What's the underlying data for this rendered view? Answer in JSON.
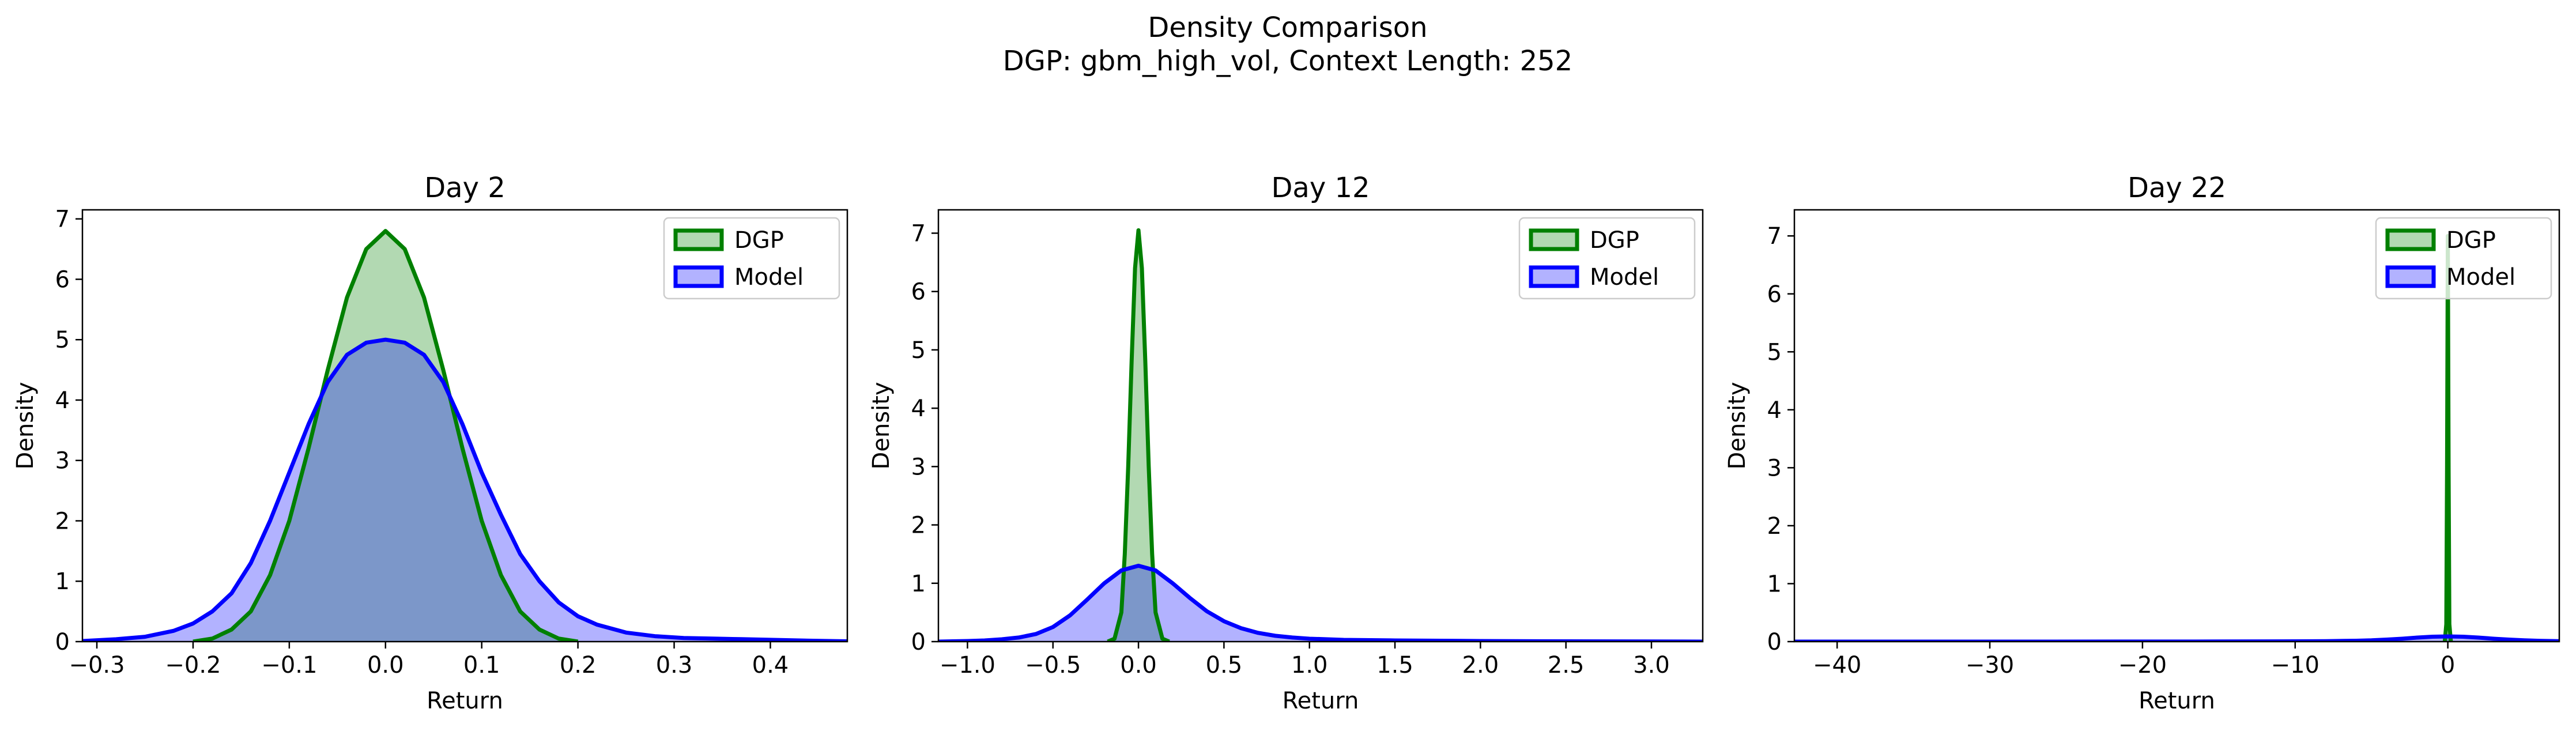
{
  "figure": {
    "title_line1": "Density Comparison",
    "title_line2": "DGP: gbm_high_vol, Context Length: 252"
  },
  "colors": {
    "dgp_line": "#008000",
    "dgp_fill": "#008000",
    "model_line": "#0000ff",
    "model_fill": "#0000ff"
  },
  "chart_data": [
    {
      "type": "area",
      "title": "Day 2",
      "xlabel": "Return",
      "ylabel": "Density",
      "xlim": [
        -0.315,
        0.48
      ],
      "ylim": [
        0,
        7.15
      ],
      "xticks": [
        -0.3,
        -0.2,
        -0.1,
        0.0,
        0.1,
        0.2,
        0.3,
        0.4
      ],
      "xtick_labels": [
        "−0.3",
        "−0.2",
        "−0.1",
        "0.0",
        "0.1",
        "0.2",
        "0.3",
        "0.4"
      ],
      "yticks": [
        0,
        1,
        2,
        3,
        4,
        5,
        6,
        7
      ],
      "ytick_labels": [
        "0",
        "1",
        "2",
        "3",
        "4",
        "5",
        "6",
        "7"
      ],
      "legend": {
        "position": "upper right",
        "entries": [
          "DGP",
          "Model"
        ]
      },
      "series": [
        {
          "name": "DGP",
          "x": [
            -0.2,
            -0.18,
            -0.16,
            -0.14,
            -0.12,
            -0.1,
            -0.08,
            -0.06,
            -0.04,
            -0.02,
            0.0,
            0.02,
            0.04,
            0.06,
            0.08,
            0.1,
            0.12,
            0.14,
            0.16,
            0.18,
            0.2
          ],
          "y": [
            0.0,
            0.05,
            0.2,
            0.5,
            1.1,
            2.0,
            3.2,
            4.5,
            5.7,
            6.5,
            6.8,
            6.5,
            5.7,
            4.5,
            3.2,
            2.0,
            1.1,
            0.5,
            0.2,
            0.05,
            0.0
          ]
        },
        {
          "name": "Model",
          "x": [
            -0.315,
            -0.28,
            -0.25,
            -0.22,
            -0.2,
            -0.18,
            -0.16,
            -0.14,
            -0.12,
            -0.1,
            -0.08,
            -0.06,
            -0.04,
            -0.02,
            0.0,
            0.02,
            0.04,
            0.06,
            0.08,
            0.1,
            0.12,
            0.14,
            0.16,
            0.18,
            0.2,
            0.22,
            0.25,
            0.28,
            0.31,
            0.34,
            0.37,
            0.4,
            0.44,
            0.48
          ],
          "y": [
            0.01,
            0.04,
            0.08,
            0.18,
            0.3,
            0.5,
            0.8,
            1.3,
            2.0,
            2.8,
            3.6,
            4.3,
            4.75,
            4.95,
            5.0,
            4.95,
            4.75,
            4.3,
            3.6,
            2.8,
            2.1,
            1.45,
            1.0,
            0.65,
            0.42,
            0.28,
            0.15,
            0.09,
            0.06,
            0.05,
            0.04,
            0.03,
            0.015,
            0.005
          ]
        }
      ]
    },
    {
      "type": "area",
      "title": "Day 12",
      "xlabel": "Return",
      "ylabel": "Density",
      "xlim": [
        -1.17,
        3.3
      ],
      "ylim": [
        0,
        7.4
      ],
      "xticks": [
        -1.0,
        -0.5,
        0.0,
        0.5,
        1.0,
        1.5,
        2.0,
        2.5,
        3.0
      ],
      "xtick_labels": [
        "−1.0",
        "−0.5",
        "0.0",
        "0.5",
        "1.0",
        "1.5",
        "2.0",
        "2.5",
        "3.0"
      ],
      "yticks": [
        0,
        1,
        2,
        3,
        4,
        5,
        6,
        7
      ],
      "ytick_labels": [
        "0",
        "1",
        "2",
        "3",
        "4",
        "5",
        "6",
        "7"
      ],
      "legend": {
        "position": "upper right",
        "entries": [
          "DGP",
          "Model"
        ]
      },
      "series": [
        {
          "name": "DGP",
          "x": [
            -0.18,
            -0.14,
            -0.1,
            -0.08,
            -0.06,
            -0.04,
            -0.02,
            0.0,
            0.02,
            0.04,
            0.06,
            0.08,
            0.1,
            0.14,
            0.18
          ],
          "y": [
            0.0,
            0.05,
            0.5,
            1.5,
            3.0,
            4.8,
            6.4,
            7.05,
            6.4,
            4.8,
            3.0,
            1.5,
            0.5,
            0.05,
            0.0
          ]
        },
        {
          "name": "Model",
          "x": [
            -1.17,
            -1.0,
            -0.9,
            -0.8,
            -0.7,
            -0.6,
            -0.5,
            -0.4,
            -0.3,
            -0.2,
            -0.1,
            0.0,
            0.1,
            0.2,
            0.3,
            0.4,
            0.5,
            0.6,
            0.7,
            0.8,
            0.9,
            1.0,
            1.2,
            1.5,
            2.0,
            2.5,
            3.0,
            3.3
          ],
          "y": [
            0.0,
            0.01,
            0.02,
            0.04,
            0.07,
            0.13,
            0.25,
            0.45,
            0.72,
            1.0,
            1.22,
            1.3,
            1.22,
            1.0,
            0.75,
            0.52,
            0.35,
            0.23,
            0.15,
            0.1,
            0.07,
            0.05,
            0.03,
            0.02,
            0.01,
            0.005,
            0.003,
            0.0
          ]
        }
      ]
    },
    {
      "type": "area",
      "title": "Day 22",
      "xlabel": "Return",
      "ylabel": "Density",
      "xlim": [
        -42.8,
        7.3
      ],
      "ylim": [
        0,
        7.45
      ],
      "xticks": [
        -40,
        -30,
        -20,
        -10,
        0
      ],
      "xtick_labels": [
        "−40",
        "−30",
        "−20",
        "−10",
        "0"
      ],
      "yticks": [
        0,
        1,
        2,
        3,
        4,
        5,
        6,
        7
      ],
      "ytick_labels": [
        "0",
        "1",
        "2",
        "3",
        "4",
        "5",
        "6",
        "7"
      ],
      "legend": {
        "position": "upper right",
        "entries": [
          "DGP",
          "Model"
        ]
      },
      "series": [
        {
          "name": "DGP",
          "x": [
            -0.2,
            -0.1,
            -0.05,
            0.0,
            0.05,
            0.1,
            0.2
          ],
          "y": [
            0.0,
            0.3,
            3.0,
            7.0,
            3.0,
            0.3,
            0.0
          ]
        },
        {
          "name": "Model",
          "x": [
            -42.8,
            -30,
            -20,
            -15,
            -10,
            -8,
            -6,
            -5,
            -4,
            -3,
            -2,
            -1,
            0,
            1,
            2,
            3,
            4,
            5,
            6,
            7.3
          ],
          "y": [
            0.0,
            0.0,
            0.001,
            0.002,
            0.005,
            0.008,
            0.015,
            0.022,
            0.035,
            0.05,
            0.07,
            0.085,
            0.09,
            0.085,
            0.07,
            0.05,
            0.035,
            0.022,
            0.014,
            0.008
          ]
        }
      ]
    }
  ]
}
